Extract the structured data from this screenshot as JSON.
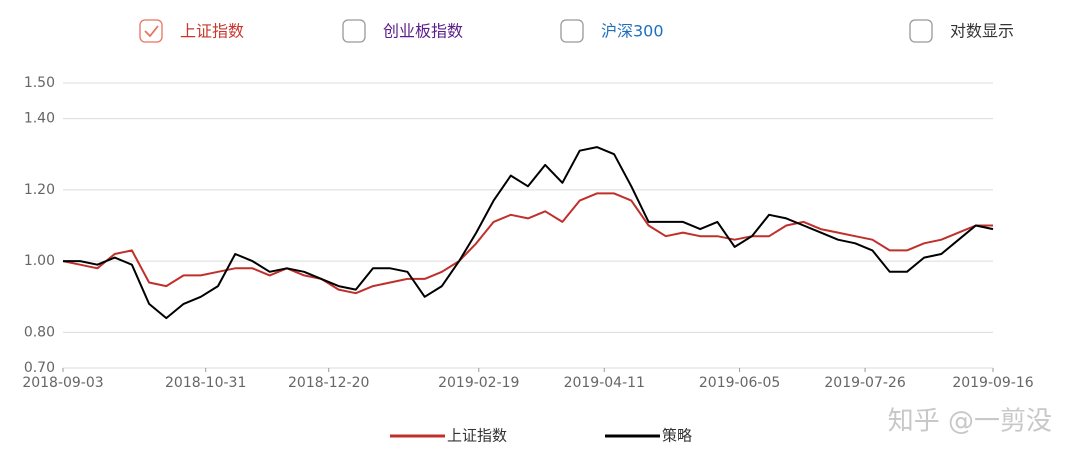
{
  "chart_data": {
    "type": "line",
    "toggles": [
      {
        "label": "上证指数",
        "checked": true,
        "color": "#c8372d"
      },
      {
        "label": "创业板指数",
        "checked": false,
        "color": "#5a1d8c"
      },
      {
        "label": "沪深300",
        "checked": false,
        "color": "#1f6fc0"
      },
      {
        "label": "对数显示",
        "checked": false,
        "color": "#333333"
      }
    ],
    "log_scale": false,
    "grid": true,
    "x": [
      "2018-09-03",
      "2018-09-10",
      "2018-09-17",
      "2018-09-24",
      "2018-10-01",
      "2018-10-08",
      "2018-10-15",
      "2018-10-22",
      "2018-10-29",
      "2018-11-05",
      "2018-11-12",
      "2018-11-19",
      "2018-11-26",
      "2018-12-03",
      "2018-12-10",
      "2018-12-17",
      "2018-12-24",
      "2018-12-31",
      "2019-01-07",
      "2019-01-14",
      "2019-01-21",
      "2019-01-28",
      "2019-02-04",
      "2019-02-11",
      "2019-02-18",
      "2019-02-25",
      "2019-03-04",
      "2019-03-11",
      "2019-03-18",
      "2019-03-25",
      "2019-04-01",
      "2019-04-08",
      "2019-04-15",
      "2019-04-22",
      "2019-04-29",
      "2019-05-06",
      "2019-05-13",
      "2019-05-20",
      "2019-05-27",
      "2019-06-03",
      "2019-06-10",
      "2019-06-17",
      "2019-06-24",
      "2019-07-01",
      "2019-07-08",
      "2019-07-15",
      "2019-07-22",
      "2019-07-29",
      "2019-08-05",
      "2019-08-12",
      "2019-08-19",
      "2019-08-26",
      "2019-09-02",
      "2019-09-09",
      "2019-09-16"
    ],
    "xlim": [
      "2018-09-03",
      "2019-09-16"
    ],
    "xticks": [
      "2018-09-03",
      "2018-10-31",
      "2018-12-20",
      "2019-02-19",
      "2019-04-11",
      "2019-06-05",
      "2019-07-26",
      "2019-09-16"
    ],
    "ylim": [
      0.7,
      1.5
    ],
    "yticks": [
      {
        "value": 0.7,
        "label": "0.70"
      },
      {
        "value": 0.8,
        "label": "0.80"
      },
      {
        "value": 1.0,
        "label": "1.00"
      },
      {
        "value": 1.2,
        "label": "1.20"
      },
      {
        "value": 1.4,
        "label": "1.40"
      },
      {
        "value": 1.5,
        "label": "1.50"
      }
    ],
    "series": [
      {
        "name": "上证指数",
        "color": "#c0302b",
        "values": [
          1.0,
          0.99,
          0.98,
          1.02,
          1.03,
          0.94,
          0.93,
          0.96,
          0.96,
          0.97,
          0.98,
          0.98,
          0.96,
          0.98,
          0.96,
          0.95,
          0.92,
          0.91,
          0.93,
          0.94,
          0.95,
          0.95,
          0.97,
          1.0,
          1.05,
          1.11,
          1.13,
          1.12,
          1.14,
          1.11,
          1.17,
          1.19,
          1.19,
          1.17,
          1.1,
          1.07,
          1.08,
          1.07,
          1.07,
          1.06,
          1.07,
          1.07,
          1.1,
          1.11,
          1.09,
          1.08,
          1.07,
          1.06,
          1.03,
          1.03,
          1.05,
          1.06,
          1.08,
          1.1,
          1.1
        ]
      },
      {
        "name": "策略",
        "color": "#000000",
        "values": [
          1.0,
          1.0,
          0.99,
          1.01,
          0.99,
          0.88,
          0.84,
          0.88,
          0.9,
          0.93,
          1.02,
          1.0,
          0.97,
          0.98,
          0.97,
          0.95,
          0.93,
          0.92,
          0.98,
          0.98,
          0.97,
          0.9,
          0.93,
          1.0,
          1.08,
          1.17,
          1.24,
          1.21,
          1.27,
          1.22,
          1.31,
          1.32,
          1.3,
          1.21,
          1.11,
          1.11,
          1.11,
          1.09,
          1.11,
          1.04,
          1.07,
          1.13,
          1.12,
          1.1,
          1.08,
          1.06,
          1.05,
          1.03,
          0.97,
          0.97,
          1.01,
          1.02,
          1.06,
          1.1,
          1.09
        ]
      }
    ],
    "watermark": "知乎 @一剪没"
  }
}
